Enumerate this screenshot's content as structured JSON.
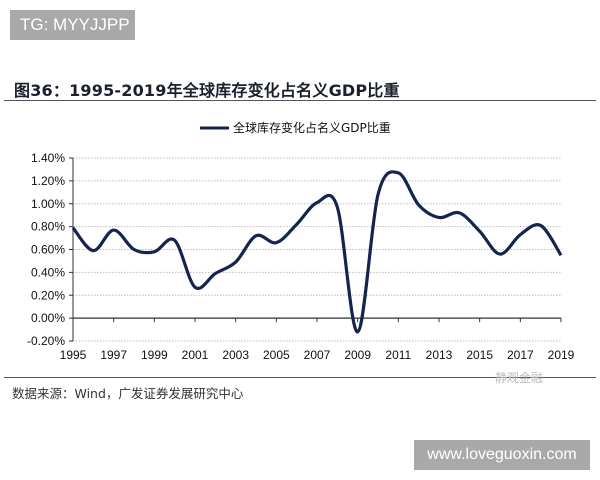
{
  "watermark_top": "TG: MYYJJPP",
  "figure_title": "图36：1995-2019年全球库存变化占名义GDP比重",
  "source": "数据来源：Wind，广发证券发展研究中心",
  "watermark_channel": "静观金融",
  "watermark_site": "www.loveguoxin.com",
  "chart_data": {
    "type": "line",
    "title": "",
    "xlabel": "",
    "ylabel": "",
    "x": [
      1995,
      1996,
      1997,
      1998,
      1999,
      2000,
      2001,
      2002,
      2003,
      2004,
      2005,
      2006,
      2007,
      2008,
      2009,
      2010,
      2011,
      2012,
      2013,
      2014,
      2015,
      2016,
      2017,
      2018,
      2019
    ],
    "series": [
      {
        "name": "全球库存变化占名义GDP比重",
        "color": "#13254f",
        "values": [
          0.79,
          0.59,
          0.77,
          0.6,
          0.58,
          0.68,
          0.27,
          0.39,
          0.49,
          0.72,
          0.66,
          0.82,
          1.01,
          0.97,
          -0.12,
          1.08,
          1.27,
          0.99,
          0.88,
          0.92,
          0.76,
          0.56,
          0.73,
          0.81,
          0.55
        ]
      }
    ],
    "ylim": [
      -0.2,
      1.4
    ],
    "y_ticks": [
      "-0.20%",
      "0.00%",
      "0.20%",
      "0.40%",
      "0.60%",
      "0.80%",
      "1.00%",
      "1.20%",
      "1.40%"
    ],
    "x_tick_labels": [
      "1995",
      "1997",
      "1999",
      "2001",
      "2003",
      "2005",
      "2007",
      "2009",
      "2011",
      "2013",
      "2015",
      "2017",
      "2019"
    ],
    "y_unit": "%",
    "grid": "horizontal dotted",
    "legend_placement": "top-center"
  }
}
